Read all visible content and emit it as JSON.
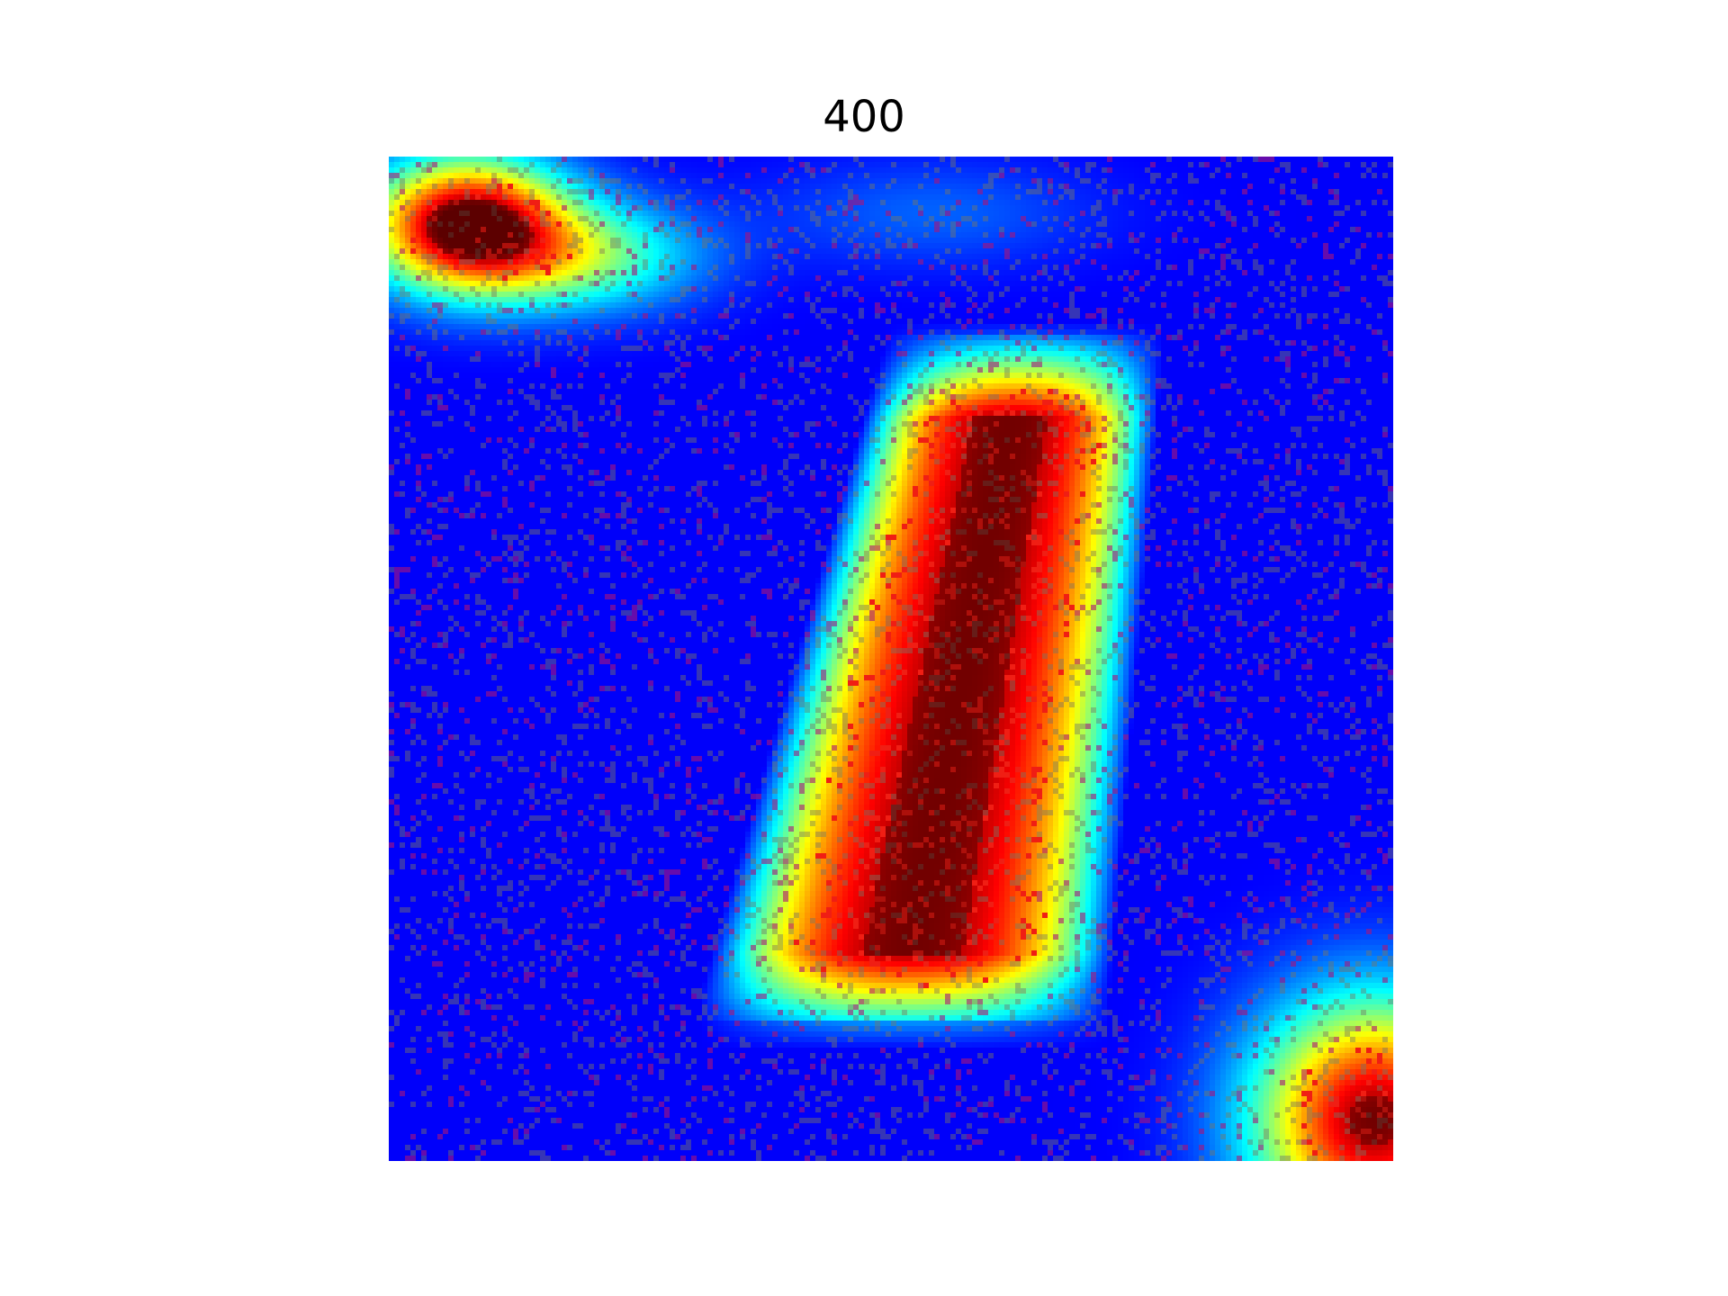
{
  "figure": {
    "title": "400"
  },
  "image": {
    "kind": "heatmap-overlay",
    "colormap": "jet",
    "axes_visible": false,
    "colors": {
      "low": "#1c26b8",
      "mid_low": "#3ad2f0",
      "mid": "#f0f020",
      "high": "#e02a10",
      "peak": "#7a2a2a",
      "background_speckle": "#7a7a6a"
    }
  }
}
